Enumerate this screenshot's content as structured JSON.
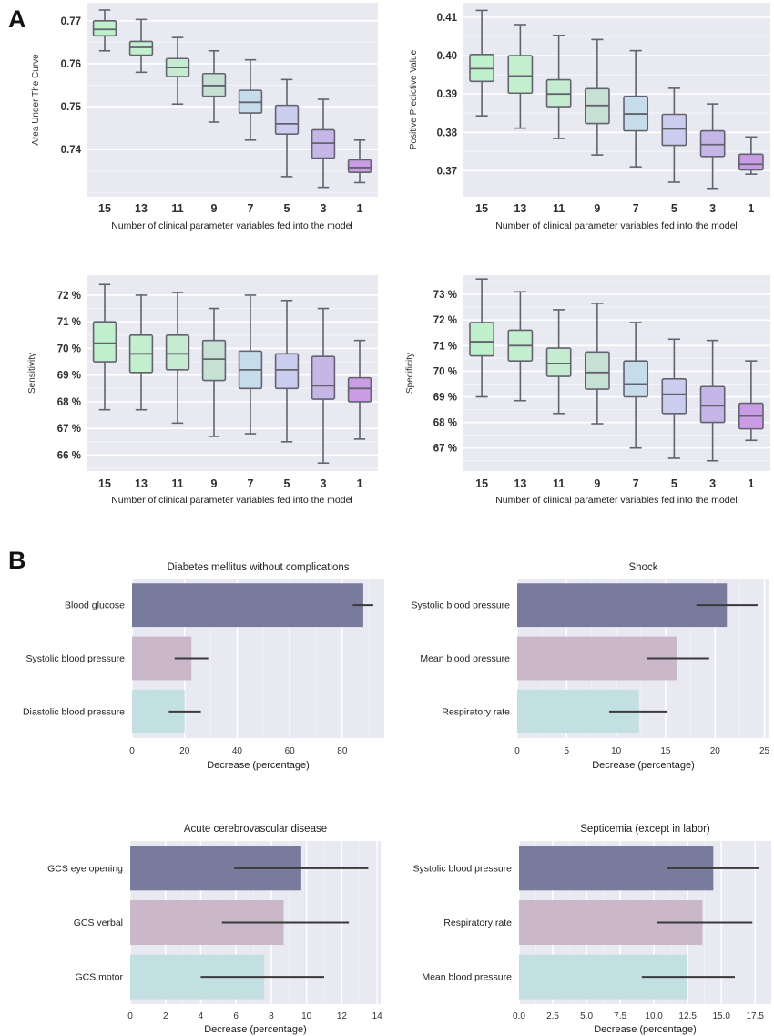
{
  "figure": {
    "panel_a_label": "A",
    "panel_b_label": "B",
    "background": "#ffffff",
    "plot_bg": "#e9e9f2",
    "grid_color": "#ffffff",
    "box_edge_color": "#63636f",
    "error_bar_color": "#3a3a3a",
    "tick_label_color": "#2e2e2e",
    "axis_label_color": "#1b1b1b",
    "box_fill_colors": [
      "#c0efcc",
      "#c3efcf",
      "#c5ecd1",
      "#c7e0d4",
      "#c7dceb",
      "#cacded",
      "#c6b5e7",
      "#ca9ce4"
    ],
    "bar_fill_colors": [
      "#797b9d",
      "#cab7ca",
      "#c2dfe1"
    ]
  },
  "chart_data": [
    {
      "id": "auc",
      "panel": "A",
      "type": "box",
      "title": "",
      "ylabel": "Area Under The Curve",
      "xlabel": "Number of clinical parameter variables fed into the model",
      "categories": [
        "15",
        "13",
        "11",
        "9",
        "7",
        "5",
        "3",
        "1"
      ],
      "ylim": [
        0.729,
        0.7742
      ],
      "ytick_values": [
        0.74,
        0.75,
        0.76,
        0.77
      ],
      "ytick_labels": [
        "0.74",
        "0.75",
        "0.76",
        "0.77"
      ],
      "minor_step": 0.005,
      "boxes": [
        {
          "lo": 0.763,
          "q1": 0.7665,
          "med": 0.768,
          "q3": 0.77,
          "hi": 0.7725
        },
        {
          "lo": 0.758,
          "q1": 0.762,
          "med": 0.7638,
          "q3": 0.7652,
          "hi": 0.7703
        },
        {
          "lo": 0.7506,
          "q1": 0.757,
          "med": 0.7591,
          "q3": 0.7612,
          "hi": 0.7661
        },
        {
          "lo": 0.7464,
          "q1": 0.7524,
          "med": 0.7549,
          "q3": 0.7577,
          "hi": 0.763
        },
        {
          "lo": 0.7422,
          "q1": 0.7485,
          "med": 0.751,
          "q3": 0.7538,
          "hi": 0.7609
        },
        {
          "lo": 0.7337,
          "q1": 0.7436,
          "med": 0.746,
          "q3": 0.7503,
          "hi": 0.7563
        },
        {
          "lo": 0.7312,
          "q1": 0.738,
          "med": 0.7415,
          "q3": 0.7446,
          "hi": 0.7517
        },
        {
          "lo": 0.7323,
          "q1": 0.7347,
          "med": 0.7358,
          "q3": 0.7376,
          "hi": 0.7422
        }
      ]
    },
    {
      "id": "ppv",
      "panel": "A",
      "type": "box",
      "title": "",
      "ylabel": "Positive Predictive Value",
      "xlabel": "Number of clinical parameter variables fed into the model",
      "categories": [
        "15",
        "13",
        "11",
        "9",
        "7",
        "5",
        "3",
        "1"
      ],
      "ylim": [
        0.3632,
        0.4138
      ],
      "ytick_values": [
        0.37,
        0.38,
        0.39,
        0.4,
        0.41
      ],
      "ytick_labels": [
        "0.37",
        "0.38",
        "0.39",
        "0.40",
        "0.41"
      ],
      "minor_step": 0.005,
      "boxes": [
        {
          "lo": 0.3843,
          "q1": 0.3933,
          "med": 0.3966,
          "q3": 0.4003,
          "hi": 0.4118
        },
        {
          "lo": 0.3811,
          "q1": 0.3902,
          "med": 0.3947,
          "q3": 0.4,
          "hi": 0.4081
        },
        {
          "lo": 0.3784,
          "q1": 0.3867,
          "med": 0.39,
          "q3": 0.3937,
          "hi": 0.4053
        },
        {
          "lo": 0.3741,
          "q1": 0.3823,
          "med": 0.387,
          "q3": 0.3914,
          "hi": 0.4042
        },
        {
          "lo": 0.371,
          "q1": 0.3804,
          "med": 0.3848,
          "q3": 0.3894,
          "hi": 0.4013
        },
        {
          "lo": 0.367,
          "q1": 0.3766,
          "med": 0.3809,
          "q3": 0.3847,
          "hi": 0.3915
        },
        {
          "lo": 0.3654,
          "q1": 0.3737,
          "med": 0.3768,
          "q3": 0.3804,
          "hi": 0.3874
        },
        {
          "lo": 0.3691,
          "q1": 0.3702,
          "med": 0.3717,
          "q3": 0.3743,
          "hi": 0.3788
        }
      ]
    },
    {
      "id": "sens",
      "panel": "A",
      "type": "box",
      "title": "",
      "ylabel": "Sensitivity",
      "xlabel": "Number of clinical parameter variables fed into the model",
      "categories": [
        "15",
        "13",
        "11",
        "9",
        "7",
        "5",
        "3",
        "1"
      ],
      "ylim": [
        65.4,
        72.75
      ],
      "ytick_values": [
        66,
        67,
        68,
        69,
        70,
        71,
        72
      ],
      "ytick_labels": [
        "66 %",
        "67 %",
        "68 %",
        "69 %",
        "70 %",
        "71 %",
        "72 %"
      ],
      "minor_step": 0.5,
      "boxes": [
        {
          "lo": 67.7,
          "q1": 69.5,
          "med": 70.2,
          "q3": 71.0,
          "hi": 72.4
        },
        {
          "lo": 67.7,
          "q1": 69.1,
          "med": 69.8,
          "q3": 70.5,
          "hi": 72.0
        },
        {
          "lo": 67.2,
          "q1": 69.2,
          "med": 69.8,
          "q3": 70.5,
          "hi": 72.1
        },
        {
          "lo": 66.7,
          "q1": 68.8,
          "med": 69.6,
          "q3": 70.3,
          "hi": 71.5
        },
        {
          "lo": 66.8,
          "q1": 68.5,
          "med": 69.2,
          "q3": 69.9,
          "hi": 72.0
        },
        {
          "lo": 66.5,
          "q1": 68.5,
          "med": 69.2,
          "q3": 69.8,
          "hi": 71.8
        },
        {
          "lo": 65.7,
          "q1": 68.1,
          "med": 68.6,
          "q3": 69.7,
          "hi": 71.5
        },
        {
          "lo": 66.6,
          "q1": 68.0,
          "med": 68.5,
          "q3": 68.9,
          "hi": 70.3
        }
      ]
    },
    {
      "id": "spec",
      "panel": "A",
      "type": "box",
      "title": "",
      "ylabel": "Specificity",
      "xlabel": "Number of clinical parameter variables fed into the model",
      "categories": [
        "15",
        "13",
        "11",
        "9",
        "7",
        "5",
        "3",
        "1"
      ],
      "ylim": [
        66.1,
        73.75
      ],
      "ytick_values": [
        67,
        68,
        69,
        70,
        71,
        72,
        73
      ],
      "ytick_labels": [
        "67 %",
        "68 %",
        "69 %",
        "70 %",
        "71 %",
        "72 %",
        "73 %"
      ],
      "minor_step": 0.5,
      "boxes": [
        {
          "lo": 69.0,
          "q1": 70.6,
          "med": 71.15,
          "q3": 71.9,
          "hi": 73.6
        },
        {
          "lo": 68.85,
          "q1": 70.4,
          "med": 71.0,
          "q3": 71.6,
          "hi": 73.1
        },
        {
          "lo": 68.35,
          "q1": 69.8,
          "med": 70.3,
          "q3": 70.9,
          "hi": 72.4
        },
        {
          "lo": 67.95,
          "q1": 69.3,
          "med": 69.95,
          "q3": 70.75,
          "hi": 72.65
        },
        {
          "lo": 67.0,
          "q1": 69.0,
          "med": 69.5,
          "q3": 70.4,
          "hi": 71.9
        },
        {
          "lo": 66.6,
          "q1": 68.35,
          "med": 69.1,
          "q3": 69.7,
          "hi": 71.25
        },
        {
          "lo": 66.5,
          "q1": 68.0,
          "med": 68.65,
          "q3": 69.4,
          "hi": 71.2
        },
        {
          "lo": 67.3,
          "q1": 67.75,
          "med": 68.25,
          "q3": 68.75,
          "hi": 70.4
        }
      ]
    },
    {
      "id": "diabetes",
      "panel": "B",
      "type": "bar",
      "title": "Diabetes mellitus without complications",
      "xlabel": "Decrease (percentage)",
      "categories": [
        "Blood glucose",
        "Systolic blood pressure",
        "Diastolic blood pressure"
      ],
      "values": [
        88,
        22.6,
        20
      ],
      "errors": [
        [
          84,
          91.8
        ],
        [
          16.2,
          29
        ],
        [
          14,
          26.2
        ]
      ],
      "xlim": [
        0,
        96
      ],
      "xtick_values": [
        0,
        20,
        40,
        60,
        80
      ],
      "xtick_labels": [
        "0",
        "20",
        "40",
        "60",
        "80"
      ],
      "minor_step": 10
    },
    {
      "id": "shock",
      "panel": "B",
      "type": "bar",
      "title": "Shock",
      "xlabel": "Decrease (percentage)",
      "categories": [
        "Systolic blood pressure",
        "Mean blood pressure",
        "Respiratory rate"
      ],
      "values": [
        21.2,
        16.2,
        12.3
      ],
      "errors": [
        [
          18.1,
          24.3
        ],
        [
          13.1,
          19.4
        ],
        [
          9.3,
          15.2
        ]
      ],
      "xlim": [
        0,
        25.5
      ],
      "xtick_values": [
        0,
        5,
        10,
        15,
        20,
        25
      ],
      "xtick_labels": [
        "0",
        "5",
        "10",
        "15",
        "20",
        "25"
      ],
      "minor_step": 2.5
    },
    {
      "id": "acute",
      "panel": "B",
      "type": "bar",
      "title": "Acute cerebrovascular disease",
      "xlabel": "Decrease (percentage)",
      "categories": [
        "GCS eye opening",
        "GCS verbal",
        "GCS motor"
      ],
      "values": [
        9.7,
        8.7,
        7.6
      ],
      "errors": [
        [
          5.9,
          13.5
        ],
        [
          5.2,
          12.4
        ],
        [
          4.0,
          11.0
        ]
      ],
      "xlim": [
        0,
        14.2
      ],
      "xtick_values": [
        0,
        2,
        4,
        6,
        8,
        10,
        12,
        14
      ],
      "xtick_labels": [
        "0",
        "2",
        "4",
        "6",
        "8",
        "10",
        "12",
        "14"
      ],
      "minor_step": 1
    },
    {
      "id": "septicemia",
      "panel": "B",
      "type": "bar",
      "title": "Septicemia (except in labor)",
      "xlabel": "Decrease (percentage)",
      "categories": [
        "Systolic blood pressure",
        "Respiratory rate",
        "Mean blood pressure"
      ],
      "values": [
        14.4,
        13.6,
        12.5
      ],
      "errors": [
        [
          11.0,
          17.8
        ],
        [
          10.2,
          17.3
        ],
        [
          9.1,
          16.0
        ]
      ],
      "xlim": [
        0,
        18.7
      ],
      "xtick_values": [
        0,
        2.5,
        5,
        7.5,
        10,
        12.5,
        15,
        17.5
      ],
      "xtick_labels": [
        "0.0",
        "2.5",
        "5.0",
        "7.5",
        "10.0",
        "12.5",
        "15.0",
        "17.5"
      ],
      "minor_step": 1.25
    }
  ]
}
